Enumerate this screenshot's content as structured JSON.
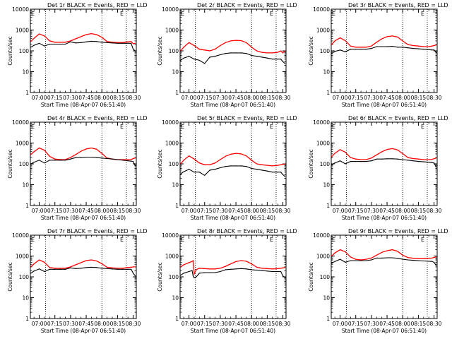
{
  "figure": {
    "ylabel": "Counts/sec",
    "xlabel": "Start Time (08-Apr-07 06:51:40)",
    "x_ticks": [
      "07:00",
      "07:15",
      "07:30",
      "07:45",
      "08:00",
      "08:15",
      "08:30"
    ],
    "x_tick_minutes": [
      0,
      15,
      30,
      45,
      60,
      75,
      90
    ],
    "x_range_minutes": [
      -8.5,
      93
    ],
    "y_ticks": [
      "1",
      "10",
      "100",
      "1000",
      "10000"
    ],
    "y_range": [
      1,
      10000
    ],
    "series_colors": {
      "events": "#000000",
      "lld": "#ff0000"
    },
    "vertical_markers_minutes": [
      6,
      60,
      83.5
    ],
    "marker_labels": [
      "E",
      "E"
    ]
  },
  "chart_data": [
    {
      "type": "line",
      "title": "Det 1r BLACK = Events, RED = LLD",
      "ylabel": "Counts/sec",
      "xlabel": "Start Time (08-Apr-07 06:51:40)",
      "ylim": [
        1,
        10000
      ],
      "x": [
        -8,
        -5,
        0,
        5,
        10,
        15,
        20,
        25,
        30,
        35,
        40,
        45,
        50,
        55,
        60,
        65,
        70,
        75,
        80,
        85,
        88,
        90,
        92
      ],
      "series": [
        {
          "name": "LLD",
          "values": [
            280,
            400,
            650,
            520,
            300,
            260,
            260,
            260,
            300,
            380,
            480,
            600,
            670,
            600,
            450,
            280,
            260,
            250,
            250,
            270,
            280,
            220,
            230
          ]
        },
        {
          "name": "Events",
          "values": [
            150,
            185,
            230,
            170,
            210,
            210,
            210,
            210,
            270,
            240,
            250,
            270,
            290,
            280,
            260,
            250,
            240,
            230,
            230,
            230,
            230,
            120,
            100
          ]
        }
      ]
    },
    {
      "type": "line",
      "title": "Det 2r BLACK = Events, RED = LLD",
      "ylabel": "Counts/sec",
      "xlabel": "Start Time (08-Apr-07 06:51:40)",
      "ylim": [
        1,
        10000
      ],
      "x": [
        -8,
        -5,
        0,
        5,
        10,
        15,
        20,
        25,
        30,
        35,
        40,
        45,
        50,
        55,
        60,
        65,
        70,
        75,
        80,
        85,
        88,
        90,
        92
      ],
      "series": [
        {
          "name": "LLD",
          "values": [
            100,
            150,
            250,
            180,
            120,
            110,
            100,
            120,
            180,
            250,
            300,
            320,
            310,
            250,
            150,
            100,
            85,
            80,
            80,
            85,
            100,
            80,
            100
          ]
        },
        {
          "name": "Events",
          "values": [
            35,
            45,
            55,
            40,
            35,
            25,
            50,
            55,
            65,
            75,
            80,
            80,
            80,
            75,
            60,
            55,
            50,
            45,
            40,
            40,
            40,
            30,
            25
          ]
        }
      ]
    },
    {
      "type": "line",
      "title": "Det 3r BLACK = Events, RED = LLD",
      "ylabel": "Counts/sec",
      "xlabel": "Start Time (08-Apr-07 06:51:40)",
      "ylim": [
        1,
        10000
      ],
      "x": [
        -8,
        -5,
        0,
        5,
        10,
        15,
        20,
        25,
        30,
        35,
        40,
        45,
        50,
        55,
        60,
        65,
        70,
        75,
        80,
        85,
        88,
        90,
        92
      ],
      "series": [
        {
          "name": "LLD",
          "values": [
            200,
            300,
            420,
            310,
            170,
            150,
            150,
            150,
            170,
            260,
            380,
            480,
            520,
            460,
            300,
            200,
            180,
            170,
            160,
            160,
            170,
            180,
            190
          ]
        },
        {
          "name": "Events",
          "values": [
            75,
            95,
            110,
            90,
            120,
            120,
            120,
            120,
            130,
            160,
            160,
            160,
            165,
            150,
            150,
            140,
            130,
            125,
            120,
            115,
            110,
            110,
            85
          ]
        }
      ]
    },
    {
      "type": "line",
      "title": "Det 4r BLACK = Events, RED = LLD",
      "ylabel": "Counts/sec",
      "xlabel": "Start Time (08-Apr-07 06:51:40)",
      "ylim": [
        1,
        10000
      ],
      "x": [
        -8,
        -5,
        0,
        5,
        10,
        15,
        20,
        25,
        30,
        35,
        40,
        45,
        50,
        55,
        60,
        65,
        70,
        75,
        80,
        85,
        88,
        90,
        92
      ],
      "series": [
        {
          "name": "LLD",
          "values": [
            280,
            380,
            580,
            450,
            230,
            170,
            160,
            160,
            200,
            280,
            400,
            520,
            580,
            500,
            320,
            190,
            170,
            160,
            160,
            160,
            160,
            180,
            190
          ]
        },
        {
          "name": "Events",
          "values": [
            100,
            120,
            150,
            110,
            150,
            150,
            150,
            150,
            170,
            200,
            200,
            210,
            210,
            200,
            190,
            180,
            170,
            160,
            150,
            140,
            135,
            130,
            80
          ]
        }
      ]
    },
    {
      "type": "line",
      "title": "Det 5r BLACK = Events, RED = LLD",
      "ylabel": "Counts/sec",
      "xlabel": "Start Time (08-Apr-07 06:51:40)",
      "ylim": [
        1,
        10000
      ],
      "x": [
        -8,
        -5,
        0,
        5,
        10,
        15,
        20,
        25,
        30,
        35,
        40,
        45,
        50,
        55,
        60,
        65,
        70,
        75,
        80,
        85,
        88,
        90,
        92
      ],
      "series": [
        {
          "name": "LLD",
          "values": [
            100,
            150,
            240,
            170,
            110,
            90,
            90,
            110,
            160,
            230,
            290,
            320,
            300,
            240,
            150,
            100,
            90,
            85,
            80,
            85,
            90,
            95,
            100
          ]
        },
        {
          "name": "Events",
          "values": [
            32,
            42,
            55,
            40,
            40,
            28,
            50,
            55,
            65,
            75,
            80,
            80,
            80,
            75,
            60,
            55,
            50,
            45,
            40,
            40,
            40,
            30,
            25
          ]
        }
      ]
    },
    {
      "type": "line",
      "title": "Det 6r BLACK = Events, RED = LLD",
      "ylabel": "Counts/sec",
      "xlabel": "Start Time (08-Apr-07 06:51:40)",
      "ylim": [
        1,
        10000
      ],
      "x": [
        -8,
        -5,
        0,
        5,
        10,
        15,
        20,
        25,
        30,
        35,
        40,
        45,
        50,
        55,
        60,
        65,
        70,
        75,
        80,
        85,
        88,
        90,
        92
      ],
      "series": [
        {
          "name": "LLD",
          "values": [
            220,
            320,
            480,
            360,
            200,
            170,
            160,
            160,
            190,
            270,
            380,
            490,
            540,
            470,
            310,
            200,
            180,
            170,
            160,
            160,
            165,
            175,
            190
          ]
        },
        {
          "name": "Events",
          "values": [
            90,
            110,
            140,
            100,
            130,
            130,
            130,
            130,
            140,
            170,
            170,
            175,
            175,
            170,
            160,
            150,
            140,
            130,
            125,
            120,
            115,
            110,
            70
          ]
        }
      ]
    },
    {
      "type": "line",
      "title": "Det 7r BLACK = Events, RED = LLD",
      "ylabel": "Counts/sec",
      "xlabel": "Start Time (08-Apr-07 06:51:40)",
      "ylim": [
        1,
        10000
      ],
      "x": [
        -8,
        -5,
        0,
        5,
        10,
        15,
        20,
        25,
        30,
        35,
        40,
        45,
        50,
        55,
        60,
        65,
        70,
        75,
        80,
        85,
        88,
        90,
        92
      ],
      "series": [
        {
          "name": "LLD",
          "values": [
            300,
            420,
            650,
            500,
            280,
            260,
            260,
            260,
            300,
            380,
            480,
            600,
            650,
            580,
            430,
            290,
            270,
            260,
            260,
            280,
            290,
            300,
            300
          ]
        },
        {
          "name": "Events",
          "values": [
            150,
            190,
            240,
            180,
            230,
            230,
            230,
            230,
            270,
            250,
            260,
            280,
            290,
            280,
            260,
            250,
            240,
            230,
            230,
            230,
            230,
            150,
            110
          ]
        }
      ]
    },
    {
      "type": "line",
      "title": "Det 8r BLACK = Events, RED = LLD",
      "ylabel": "Counts/sec",
      "xlabel": "Start Time (08-Apr-07 06:51:40)",
      "ylim": [
        1,
        10000
      ],
      "x": [
        -8,
        -5,
        0,
        3,
        4,
        5,
        7,
        10,
        15,
        20,
        25,
        30,
        35,
        40,
        45,
        50,
        55,
        60,
        65,
        70,
        75,
        80,
        85,
        88,
        90,
        92
      ],
      "series": [
        {
          "name": "LLD",
          "values": [
            300,
            380,
            480,
            550,
            600,
            140,
            220,
            260,
            250,
            240,
            240,
            260,
            320,
            420,
            540,
            600,
            560,
            420,
            290,
            260,
            250,
            240,
            250,
            260,
            270,
            280
          ]
        },
        {
          "name": "Events",
          "values": [
            120,
            150,
            180,
            200,
            110,
            90,
            100,
            150,
            160,
            160,
            160,
            180,
            220,
            230,
            240,
            250,
            240,
            220,
            210,
            200,
            190,
            180,
            180,
            180,
            110,
            95
          ]
        }
      ]
    },
    {
      "type": "line",
      "title": "Det 9r BLACK = Events, RED = LLD",
      "ylabel": "Counts/sec",
      "xlabel": "Start Time (08-Apr-07 06:51:40)",
      "ylim": [
        1,
        10000
      ],
      "x": [
        -8,
        -5,
        0,
        5,
        10,
        15,
        20,
        25,
        30,
        35,
        40,
        45,
        50,
        55,
        60,
        65,
        70,
        75,
        80,
        85,
        88,
        90,
        92
      ],
      "series": [
        {
          "name": "LLD",
          "values": [
            1000,
            1400,
            2000,
            1600,
            900,
            700,
            650,
            700,
            800,
            1100,
            1500,
            1800,
            2000,
            1700,
            1100,
            850,
            780,
            750,
            750,
            780,
            800,
            850,
            900
          ]
        },
        {
          "name": "Events",
          "values": [
            450,
            550,
            700,
            500,
            600,
            600,
            600,
            600,
            650,
            800,
            800,
            820,
            820,
            780,
            700,
            650,
            620,
            600,
            580,
            560,
            550,
            500,
            350
          ]
        }
      ]
    }
  ]
}
